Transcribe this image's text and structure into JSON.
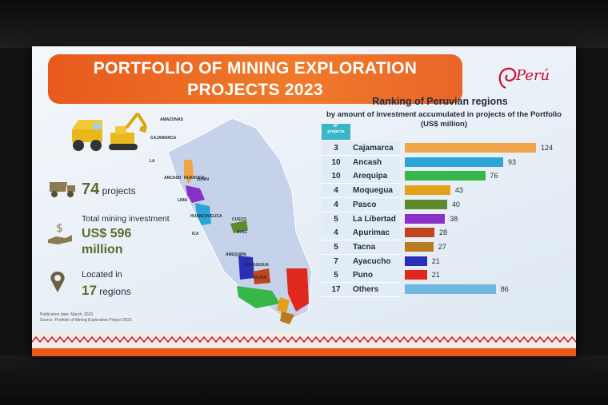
{
  "slide": {
    "title_line1": "PORTFOLIO OF MINING EXPLORATION",
    "title_line2": "PROJECTS 2023",
    "logo_text": "Perú"
  },
  "stats": {
    "projects_value": "74",
    "projects_label": "projects",
    "investment_label": "Total mining investment",
    "investment_value_line1": "US$ 596",
    "investment_value_line2": "million",
    "located_label": "Located in",
    "regions_value": "17",
    "regions_label": "regions"
  },
  "footnote": {
    "line1": "Publication date: March, 2023",
    "line2": "Source:   Portfolio of Mining Exploration Project 2023"
  },
  "map": {
    "labels": [
      "AMAZONAS",
      "CAJAMARCA",
      "LA",
      "ANCASH",
      "HUANUCO",
      "JUNIN",
      "LIMA",
      "HUANCAVELICA",
      "ICA",
      "CUSCO",
      "AYAC",
      "AREQUIPA",
      "MOQUEGUA",
      "TACNA"
    ]
  },
  "chart_data": {
    "type": "bar",
    "title": "Ranking of Peruvian regions",
    "subtitle_line1": "by amount of investment accumulated in projects of the Portfolio",
    "subtitle_line2": "(US$ million)",
    "count_header_line1": "N°",
    "count_header_line2": "projects",
    "orientation": "horizontal",
    "categories": [
      "Cajamarca",
      "Ancash",
      "Arequipa",
      "Moquegua",
      "Pasco",
      "La Libertad",
      "Apurimac",
      "Tacna",
      "Ayacucho",
      "Puno",
      "Others"
    ],
    "project_counts": [
      "3",
      "10",
      "10",
      "4",
      "4",
      "5",
      "4",
      "5",
      "7",
      "5",
      "17"
    ],
    "values": [
      124,
      93,
      76,
      43,
      40,
      38,
      28,
      27,
      21,
      21,
      86
    ],
    "colors": [
      "#f0a54a",
      "#2aa5d8",
      "#37b64a",
      "#e3a01b",
      "#5d8a2a",
      "#8b2fc9",
      "#c1441e",
      "#b87c1e",
      "#2a2fb5",
      "#e0281e",
      "#6fb7e0"
    ],
    "xlim": [
      0,
      124
    ]
  }
}
